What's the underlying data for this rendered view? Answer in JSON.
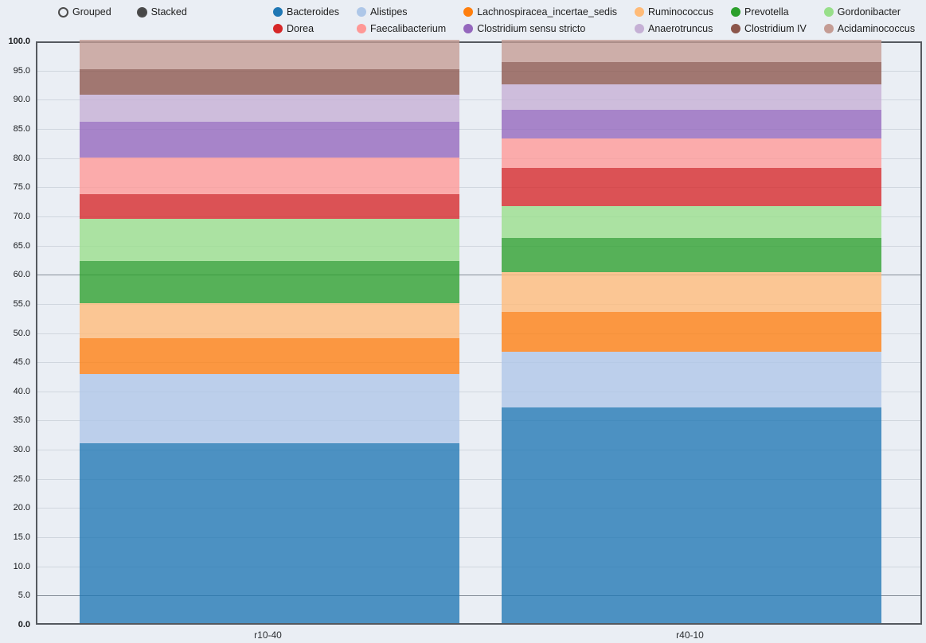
{
  "controls": {
    "grouped_label": "Grouped",
    "stacked_label": "Stacked",
    "selected": "Stacked"
  },
  "legend": {
    "items": [
      {
        "label": "Bacteroides",
        "color": "#1f77b4"
      },
      {
        "label": "Alistipes",
        "color": "#aec7e8"
      },
      {
        "label": "Lachnospiracea_incertae_sedis",
        "color": "#ff7f0e"
      },
      {
        "label": "Ruminococcus",
        "color": "#ffbb78"
      },
      {
        "label": "Prevotella",
        "color": "#2ca02c"
      },
      {
        "label": "Gordonibacter",
        "color": "#98df8a"
      },
      {
        "label": "Dorea",
        "color": "#d62728"
      },
      {
        "label": "Faecalibacterium",
        "color": "#ff9896"
      },
      {
        "label": "Clostridium sensu stricto",
        "color": "#9467bd"
      },
      {
        "label": "Anaerotruncus",
        "color": "#c5b0d5"
      },
      {
        "label": "Clostridium IV",
        "color": "#8c564b"
      },
      {
        "label": "Acidaminococcus",
        "color": "#c49c94"
      }
    ]
  },
  "chart_data": {
    "type": "bar",
    "mode": "stacked",
    "title": "",
    "xlabel": "",
    "ylabel": "",
    "grid": true,
    "legend_position": "top",
    "categories": [
      "r10-40",
      "r40-10"
    ],
    "ylim": [
      0,
      100
    ],
    "yticks": [
      {
        "value": 0,
        "label": "0.0"
      },
      {
        "value": 5,
        "label": "5.0"
      },
      {
        "value": 10,
        "label": "10.0"
      },
      {
        "value": 15,
        "label": "15.0"
      },
      {
        "value": 20,
        "label": "20.0"
      },
      {
        "value": 25,
        "label": "25.0"
      },
      {
        "value": 30,
        "label": "30.0"
      },
      {
        "value": 35,
        "label": "35.0"
      },
      {
        "value": 40,
        "label": "40.0"
      },
      {
        "value": 45,
        "label": "45.0"
      },
      {
        "value": 50,
        "label": "50.0"
      },
      {
        "value": 55,
        "label": "55.0"
      },
      {
        "value": 60,
        "label": "60.0"
      },
      {
        "value": 65,
        "label": "65.0"
      },
      {
        "value": 70,
        "label": "70.0"
      },
      {
        "value": 75,
        "label": "75.0"
      },
      {
        "value": 80,
        "label": "80.0"
      },
      {
        "value": 85,
        "label": "85.0"
      },
      {
        "value": 90,
        "label": "90.0"
      },
      {
        "value": 95,
        "label": "95.0"
      },
      {
        "value": 100,
        "label": "100.0"
      }
    ],
    "emphasized_gridlines": [
      5,
      60
    ],
    "series": [
      {
        "name": "Bacteroides",
        "color": "#1f77b4",
        "values": [
          30.8,
          37.0
        ]
      },
      {
        "name": "Alistipes",
        "color": "#aec7e8",
        "values": [
          11.9,
          9.5
        ]
      },
      {
        "name": "Lachnospiracea_incertae_sedis",
        "color": "#ff7f0e",
        "values": [
          6.1,
          6.9
        ]
      },
      {
        "name": "Ruminococcus",
        "color": "#ffbb78",
        "values": [
          6.0,
          6.8
        ]
      },
      {
        "name": "Prevotella",
        "color": "#2ca02c",
        "values": [
          7.3,
          5.9
        ]
      },
      {
        "name": "Gordonibacter",
        "color": "#98df8a",
        "values": [
          7.2,
          5.4
        ]
      },
      {
        "name": "Dorea",
        "color": "#d62728",
        "values": [
          4.3,
          6.6
        ]
      },
      {
        "name": "Faecalibacterium",
        "color": "#ff9896",
        "values": [
          6.2,
          5.0
        ]
      },
      {
        "name": "Clostridium sensu stricto",
        "color": "#9467bd",
        "values": [
          6.2,
          4.9
        ]
      },
      {
        "name": "Anaerotruncus",
        "color": "#c5b0d5",
        "values": [
          4.6,
          4.3
        ]
      },
      {
        "name": "Clostridium IV",
        "color": "#8c564b",
        "values": [
          4.3,
          3.9
        ]
      },
      {
        "name": "Acidaminococcus",
        "color": "#c49c94",
        "values": [
          5.1,
          3.8
        ]
      }
    ]
  }
}
